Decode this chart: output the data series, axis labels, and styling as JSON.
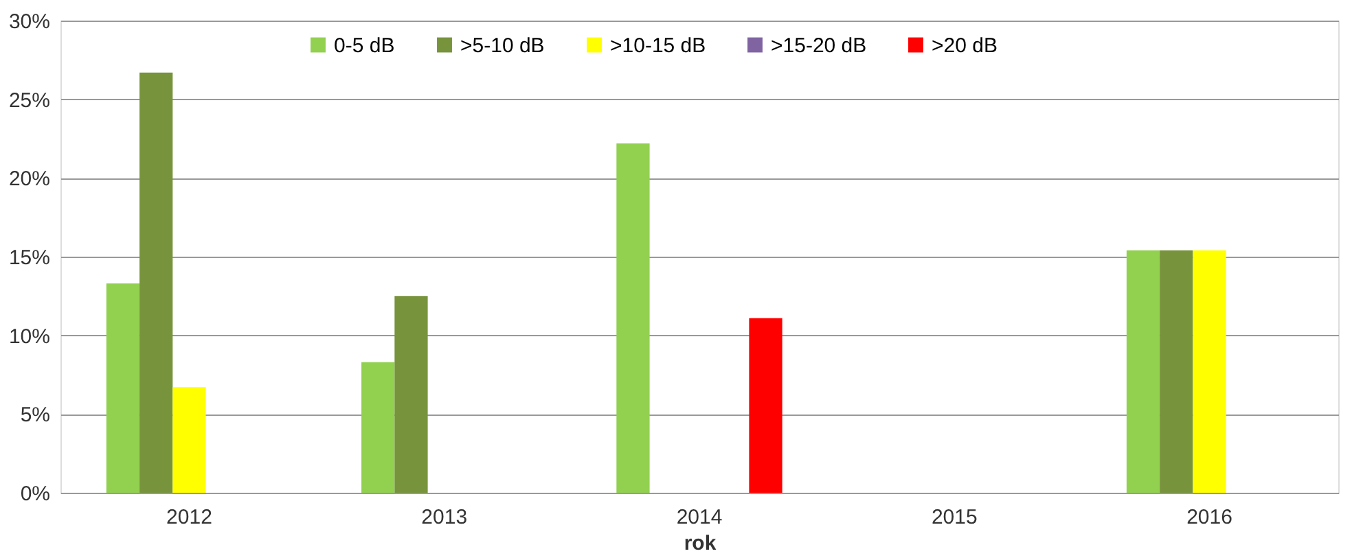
{
  "chart_data": {
    "type": "bar",
    "xlabel": "rok",
    "categories": [
      "2012",
      "2013",
      "2014",
      "2015",
      "2016"
    ],
    "series": [
      {
        "name": "0-5 dB",
        "color": "#92d050",
        "values": [
          13.3,
          8.3,
          22.2,
          0,
          15.4
        ]
      },
      {
        "name": ">5-10 dB",
        "color": "#77933c",
        "values": [
          26.7,
          12.5,
          0,
          0,
          15.4
        ]
      },
      {
        "name": ">10-15 dB",
        "color": "#ffff00",
        "values": [
          6.7,
          0,
          0,
          0,
          15.4
        ]
      },
      {
        "name": ">15-20 dB",
        "color": "#8064a2",
        "values": [
          0,
          0,
          0,
          0,
          0
        ]
      },
      {
        "name": ">20 dB",
        "color": "#ff0000",
        "values": [
          0,
          0,
          11.1,
          0,
          0
        ]
      }
    ],
    "ylim": [
      0,
      30
    ],
    "yticks": [
      {
        "value": 0,
        "label": "0%"
      },
      {
        "value": 5,
        "label": "5%"
      },
      {
        "value": 10,
        "label": "10%"
      },
      {
        "value": 15,
        "label": "15%"
      },
      {
        "value": 20,
        "label": "20%"
      },
      {
        "value": 25,
        "label": "25%"
      },
      {
        "value": 30,
        "label": "30%"
      }
    ],
    "grid": "y",
    "legend": "top"
  }
}
